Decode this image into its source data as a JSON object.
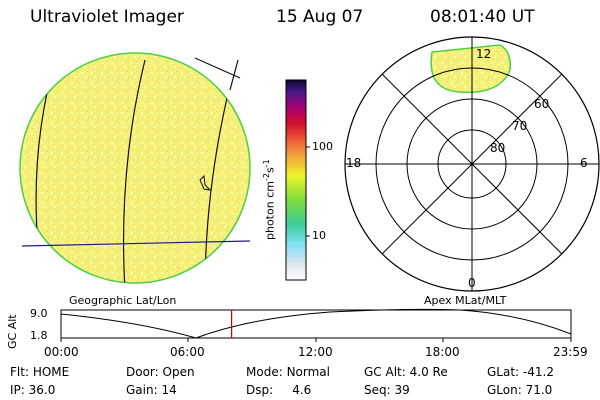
{
  "header": {
    "title": "Ultraviolet Imager",
    "date": "15 Aug 07",
    "time": "08:01:40 UT"
  },
  "colorbar": {
    "label_html_text": "photon cm",
    "unit_exp1": "-2",
    "unit_s": "s",
    "unit_exp2": "-1",
    "ticks": [
      "100",
      "10"
    ]
  },
  "panels": {
    "left_caption": "Geographic Lat/Lon",
    "right_caption": "Apex MLat/MLT"
  },
  "polar": {
    "mlt_labels": {
      "top": "12",
      "left": "18",
      "right": "6",
      "bottom": "0"
    },
    "lat_labels": [
      "60",
      "70",
      "80"
    ]
  },
  "orbit": {
    "ylabel": "GC Alt",
    "yticks": [
      "9.0",
      "1.8"
    ],
    "xticks": [
      "00:00",
      "06:00",
      "12:00",
      "18:00",
      "23:59"
    ],
    "current_time_hours": 8.03
  },
  "status": {
    "row1": [
      {
        "label": "Flt:",
        "value": "HOME"
      },
      {
        "label": "Door:",
        "value": "Open"
      },
      {
        "label": "Mode:",
        "value": "Normal"
      },
      {
        "label": "GC Alt:",
        "value": "4.0 Re"
      },
      {
        "label": "GLat:",
        "value": "-41.2"
      }
    ],
    "row2": [
      {
        "label": "IP:",
        "value": "36.0"
      },
      {
        "label": "Gain:",
        "value": "14"
      },
      {
        "label": "Dsp:",
        "value": "4.6"
      },
      {
        "label": "Seq:",
        "value": "39"
      },
      {
        "label": "GLon:",
        "value": "71.0"
      }
    ]
  },
  "colors": {
    "disk_fill": "#f4f078",
    "disk_edge": "#4ccf40",
    "grid_lat": "#1a1a7a",
    "marker": "#cc0000"
  }
}
